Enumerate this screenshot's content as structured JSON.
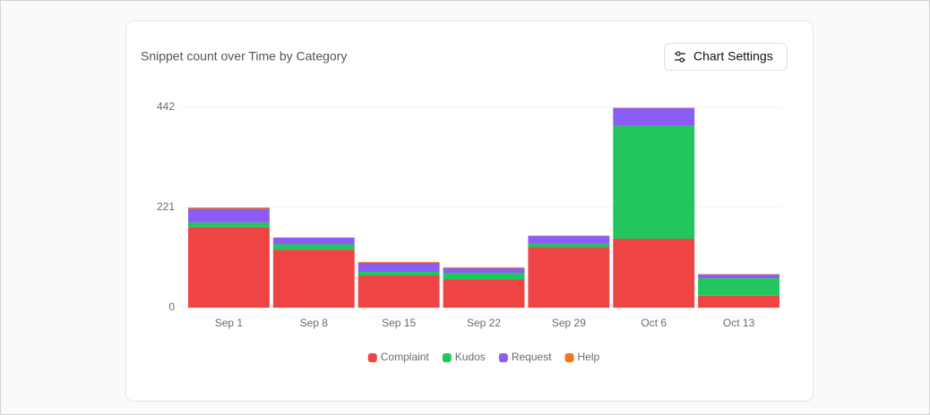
{
  "chart_data": {
    "type": "bar",
    "stacked": true,
    "title": "Snippet count over Time by Category",
    "categories": [
      "Sep 1",
      "Sep 8",
      "Sep 15",
      "Sep 22",
      "Sep 29",
      "Oct 6",
      "Oct 13"
    ],
    "series": [
      {
        "name": "Complaint",
        "color": "#ef4444",
        "values": [
          178,
          128,
          71,
          63,
          134,
          152,
          26
        ]
      },
      {
        "name": "Kudos",
        "color": "#22c55e",
        "values": [
          10,
          12,
          8,
          14,
          8,
          249,
          39
        ]
      },
      {
        "name": "Request",
        "color": "#8b5cf6",
        "values": [
          30,
          14,
          20,
          10,
          16,
          39,
          8
        ]
      },
      {
        "name": "Help",
        "color": "#f97316",
        "values": [
          3,
          1,
          2,
          2,
          1,
          1,
          1
        ]
      }
    ],
    "ylim": [
      0,
      442
    ],
    "yticks": [
      0,
      221,
      442
    ],
    "grid": true,
    "legend": "bottom"
  },
  "button": {
    "label": "Chart Settings"
  }
}
